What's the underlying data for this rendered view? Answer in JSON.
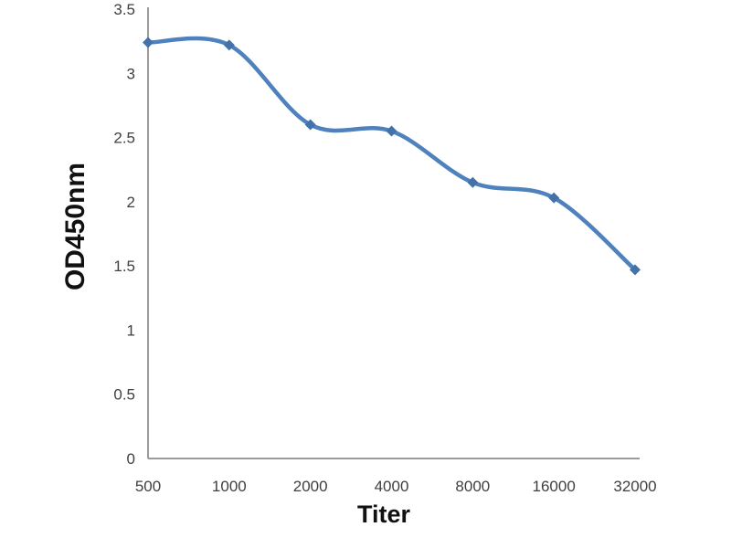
{
  "chart_data": {
    "type": "line",
    "title": "",
    "xlabel": "Titer",
    "ylabel": "OD450nm",
    "categories": [
      "500",
      "1000",
      "2000",
      "4000",
      "8000",
      "16000",
      "32000"
    ],
    "series": [
      {
        "name": "OD450nm",
        "values": [
          3.24,
          3.22,
          2.6,
          2.55,
          2.15,
          2.03,
          1.47
        ]
      }
    ],
    "ylim": [
      0,
      3.5
    ],
    "yticks": [
      {
        "value": 0,
        "label": "0"
      },
      {
        "value": 0.5,
        "label": "0.5"
      },
      {
        "value": 1,
        "label": "1"
      },
      {
        "value": 1.5,
        "label": "1.5"
      },
      {
        "value": 2,
        "label": "2"
      },
      {
        "value": 2.5,
        "label": "2.5"
      },
      {
        "value": 3,
        "label": "3"
      },
      {
        "value": 3.5,
        "label": "3.5"
      }
    ],
    "grid": false,
    "legend": "none",
    "line_style": "smooth",
    "marker": "diamond",
    "colors": {
      "line": "#4f81bd",
      "marker": "#4472a8",
      "axis": "#9b9b9b",
      "tick_text": "#3f3f3f",
      "title_text": "#111111",
      "background": "#ffffff"
    }
  }
}
